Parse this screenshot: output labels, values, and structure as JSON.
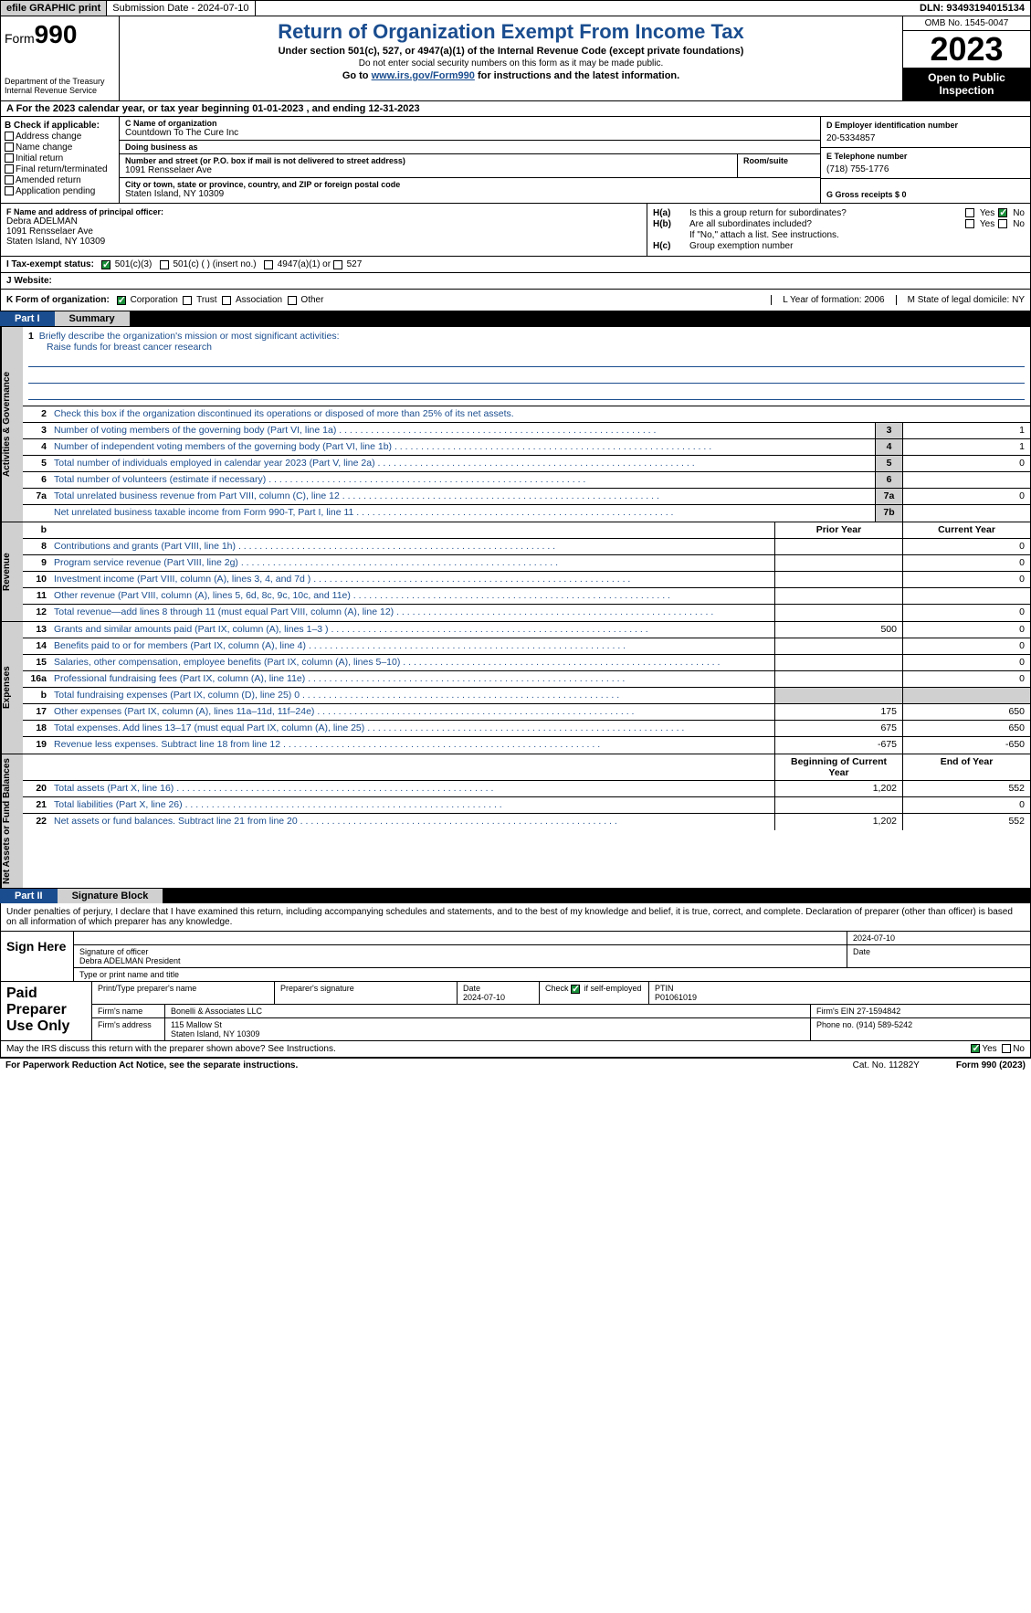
{
  "topbar": {
    "efile": "efile GRAPHIC print",
    "submission": "Submission Date - 2024-07-10",
    "dln": "DLN: 93493194015134"
  },
  "header": {
    "form_prefix": "Form",
    "form_num": "990",
    "dept": "Department of the Treasury Internal Revenue Service",
    "title": "Return of Organization Exempt From Income Tax",
    "sub": "Under section 501(c), 527, or 4947(a)(1) of the Internal Revenue Code (except private foundations)",
    "ssn": "Do not enter social security numbers on this form as it may be made public.",
    "goto_pre": "Go to ",
    "goto_link": "www.irs.gov/Form990",
    "goto_post": " for instructions and the latest information.",
    "omb": "OMB No. 1545-0047",
    "year": "2023",
    "open": "Open to Public Inspection"
  },
  "line_a": "A For the 2023 calendar year, or tax year beginning 01-01-2023   , and ending 12-31-2023",
  "box_b": {
    "hdr": "B Check if applicable:",
    "opts": [
      "Address change",
      "Name change",
      "Initial return",
      "Final return/terminated",
      "Amended return",
      "Application pending"
    ]
  },
  "box_c": {
    "name_lbl": "C Name of organization",
    "name": "Countdown To The Cure Inc",
    "dba_lbl": "Doing business as",
    "dba": "",
    "street_lbl": "Number and street (or P.O. box if mail is not delivered to street address)",
    "street": "1091 Rensselaer Ave",
    "room_lbl": "Room/suite",
    "city_lbl": "City or town, state or province, country, and ZIP or foreign postal code",
    "city": "Staten Island, NY  10309"
  },
  "box_d": {
    "ein_lbl": "D Employer identification number",
    "ein": "20-5334857",
    "tel_lbl": "E Telephone number",
    "tel": "(718) 755-1776",
    "gross_lbl": "G Gross receipts $ 0"
  },
  "box_f": {
    "lbl": "F  Name and address of principal officer:",
    "name": "Debra ADELMAN",
    "addr1": "1091 Rensselaer Ave",
    "addr2": "Staten Island, NY  10309"
  },
  "box_h": {
    "ha_lbl": "H(a)",
    "ha_txt": "Is this a group return for subordinates?",
    "hb_lbl": "H(b)",
    "hb_txt": "Are all subordinates included?",
    "hb_note": "If \"No,\" attach a list. See instructions.",
    "hc_lbl": "H(c)",
    "hc_txt": "Group exemption number",
    "yes": "Yes",
    "no": "No"
  },
  "tax_status": {
    "lbl": "I  Tax-exempt status:",
    "o1": "501(c)(3)",
    "o2": "501(c) (  ) (insert no.)",
    "o3": "4947(a)(1) or",
    "o4": "527"
  },
  "website": {
    "lbl": "J  Website:"
  },
  "line_k": {
    "lbl": "K Form of organization:",
    "o1": "Corporation",
    "o2": "Trust",
    "o3": "Association",
    "o4": "Other",
    "l_lbl": "L Year of formation: 2006",
    "m_lbl": "M State of legal domicile: NY"
  },
  "part1": {
    "num": "Part I",
    "title": "Summary"
  },
  "summary": {
    "tabs": [
      "Activities & Governance",
      "Revenue",
      "Expenses",
      "Net Assets or Fund Balances"
    ],
    "line1_lbl": "Briefly describe the organization's mission or most significant activities:",
    "mission": "Raise funds for breast cancer research",
    "line2": "Check this box      if the organization discontinued its operations or disposed of more than 25% of its net assets.",
    "rows_gov": [
      {
        "n": "3",
        "t": "Number of voting members of the governing body (Part VI, line 1a)",
        "b": "3",
        "v": "1"
      },
      {
        "n": "4",
        "t": "Number of independent voting members of the governing body (Part VI, line 1b)",
        "b": "4",
        "v": "1"
      },
      {
        "n": "5",
        "t": "Total number of individuals employed in calendar year 2023 (Part V, line 2a)",
        "b": "5",
        "v": "0"
      },
      {
        "n": "6",
        "t": "Total number of volunteers (estimate if necessary)",
        "b": "6",
        "v": ""
      },
      {
        "n": "7a",
        "t": "Total unrelated business revenue from Part VIII, column (C), line 12",
        "b": "7a",
        "v": "0"
      },
      {
        "n": "",
        "t": "Net unrelated business taxable income from Form 990-T, Part I, line 11",
        "b": "7b",
        "v": ""
      }
    ],
    "col_hdr_b": "b",
    "col_prior": "Prior Year",
    "col_current": "Current Year",
    "rows_rev": [
      {
        "n": "8",
        "t": "Contributions and grants (Part VIII, line 1h)",
        "p": "",
        "c": "0"
      },
      {
        "n": "9",
        "t": "Program service revenue (Part VIII, line 2g)",
        "p": "",
        "c": "0"
      },
      {
        "n": "10",
        "t": "Investment income (Part VIII, column (A), lines 3, 4, and 7d )",
        "p": "",
        "c": "0"
      },
      {
        "n": "11",
        "t": "Other revenue (Part VIII, column (A), lines 5, 6d, 8c, 9c, 10c, and 11e)",
        "p": "",
        "c": ""
      },
      {
        "n": "12",
        "t": "Total revenue—add lines 8 through 11 (must equal Part VIII, column (A), line 12)",
        "p": "",
        "c": "0"
      }
    ],
    "rows_exp": [
      {
        "n": "13",
        "t": "Grants and similar amounts paid (Part IX, column (A), lines 1–3 )",
        "p": "500",
        "c": "0"
      },
      {
        "n": "14",
        "t": "Benefits paid to or for members (Part IX, column (A), line 4)",
        "p": "",
        "c": "0"
      },
      {
        "n": "15",
        "t": "Salaries, other compensation, employee benefits (Part IX, column (A), lines 5–10)",
        "p": "",
        "c": "0"
      },
      {
        "n": "16a",
        "t": "Professional fundraising fees (Part IX, column (A), line 11e)",
        "p": "",
        "c": "0"
      },
      {
        "n": "b",
        "t": "Total fundraising expenses (Part IX, column (D), line 25) 0",
        "p": "shade",
        "c": "shade"
      },
      {
        "n": "17",
        "t": "Other expenses (Part IX, column (A), lines 11a–11d, 11f–24e)",
        "p": "175",
        "c": "650"
      },
      {
        "n": "18",
        "t": "Total expenses. Add lines 13–17 (must equal Part IX, column (A), line 25)",
        "p": "675",
        "c": "650"
      },
      {
        "n": "19",
        "t": "Revenue less expenses. Subtract line 18 from line 12",
        "p": "-675",
        "c": "-650"
      }
    ],
    "col_begin": "Beginning of Current Year",
    "col_end": "End of Year",
    "rows_net": [
      {
        "n": "20",
        "t": "Total assets (Part X, line 16)",
        "p": "1,202",
        "c": "552"
      },
      {
        "n": "21",
        "t": "Total liabilities (Part X, line 26)",
        "p": "",
        "c": "0"
      },
      {
        "n": "22",
        "t": "Net assets or fund balances. Subtract line 21 from line 20",
        "p": "1,202",
        "c": "552"
      }
    ]
  },
  "part2": {
    "num": "Part II",
    "title": "Signature Block"
  },
  "sig": {
    "penalty": "Under penalties of perjury, I declare that I have examined this return, including accompanying schedules and statements, and to the best of my knowledge and belief, it is true, correct, and complete. Declaration of preparer (other than officer) is based on all information of which preparer has any knowledge.",
    "sign_here": "Sign Here",
    "sig_officer_lbl": "Signature of officer",
    "sig_officer": "Debra ADELMAN  President",
    "type_lbl": "Type or print name and title",
    "date_lbl": "Date",
    "date": "2024-07-10",
    "paid": "Paid Preparer Use Only",
    "prep_name_lbl": "Print/Type preparer's name",
    "prep_sig_lbl": "Preparer's signature",
    "prep_date_lbl": "Date",
    "prep_date": "2024-07-10",
    "self_emp": "Check       if self-employed",
    "ptin_lbl": "PTIN",
    "ptin": "P01061019",
    "firm_name_lbl": "Firm's name",
    "firm_name": "Bonelli & Associates LLC",
    "firm_ein_lbl": "Firm's EIN",
    "firm_ein": "27-1594842",
    "firm_addr_lbl": "Firm's address",
    "firm_addr1": "115 Mallow St",
    "firm_addr2": "Staten Island, NY  10309",
    "phone_lbl": "Phone no.",
    "phone": "(914) 589-5242",
    "discuss": "May the IRS discuss this return with the preparer shown above? See Instructions.",
    "yes": "Yes",
    "no": "No"
  },
  "footer": {
    "f1": "For Paperwork Reduction Act Notice, see the separate instructions.",
    "f2": "Cat. No. 11282Y",
    "f3": "Form 990 (2023)"
  }
}
